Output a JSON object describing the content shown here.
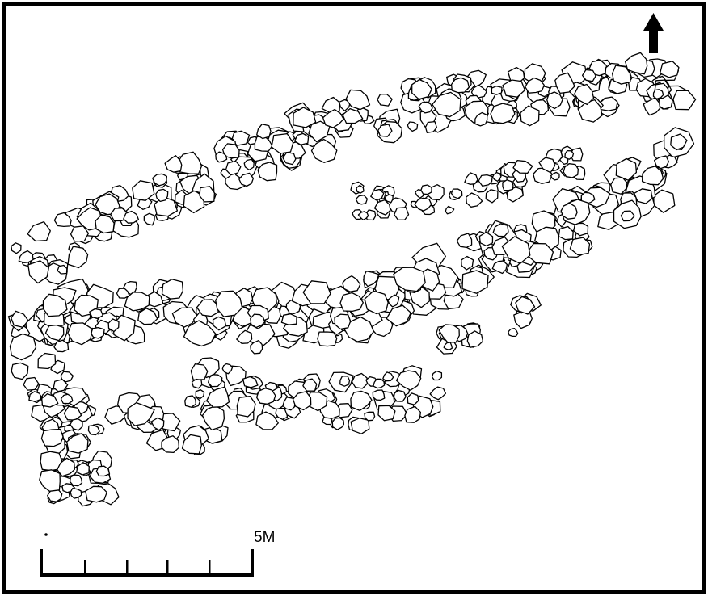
{
  "scale_bar": {
    "label": "5M"
  }
}
